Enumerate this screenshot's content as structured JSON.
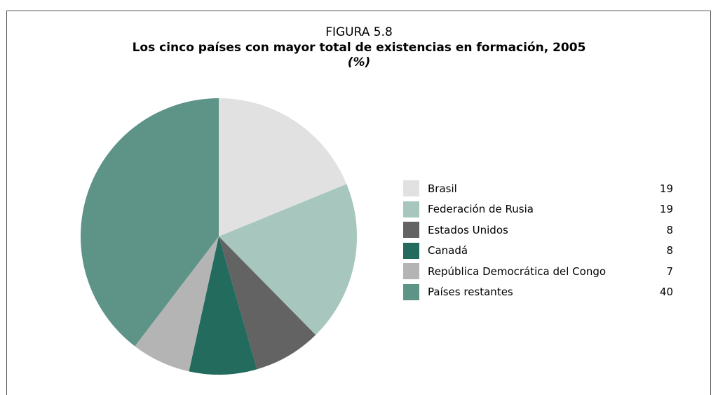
{
  "chart_data": {
    "type": "pie",
    "title_line1": "FIGURA 5.8",
    "title": "Los cinco países con mayor total de existencias en formación, 2005",
    "subtitle": "(%)",
    "legend_position": "right",
    "slices": [
      {
        "label": "Brasil",
        "value": 19,
        "color": "#e1e1e1"
      },
      {
        "label": "Federación de Rusia",
        "value": 19,
        "color": "#a6c6be"
      },
      {
        "label": "Estados Unidos",
        "value": 8,
        "color": "#636363"
      },
      {
        "label": "Canadá",
        "value": 8,
        "color": "#236b5d"
      },
      {
        "label": "República Democrática del Congo",
        "value": 7,
        "color": "#b4b4b4"
      },
      {
        "label": "Países restantes",
        "value": 40,
        "color": "#5e9488"
      }
    ]
  }
}
